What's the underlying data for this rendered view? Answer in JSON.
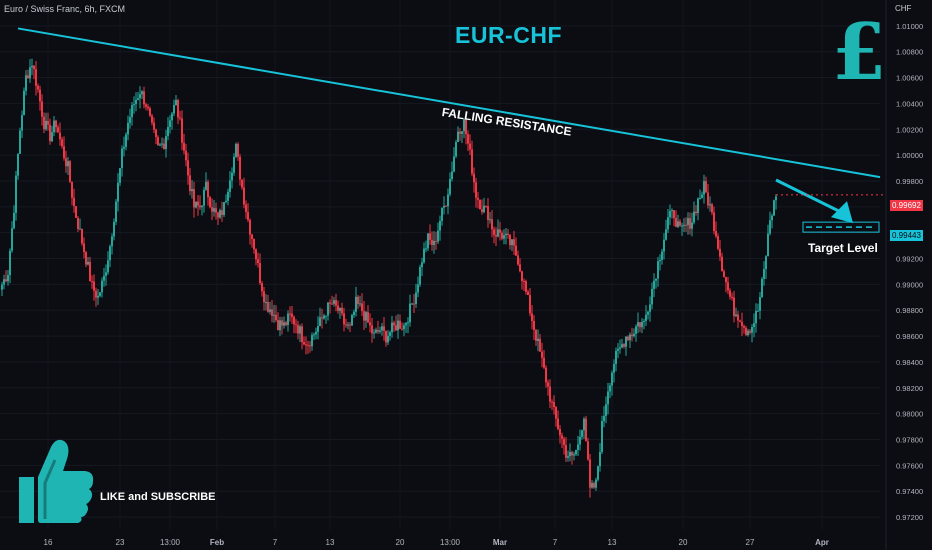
{
  "header": {
    "symbol": "Euro / Swiss Franc, 6h, FXCM"
  },
  "annotations": {
    "title": "EUR-CHF",
    "falling_resistance": "FALLING RESISTANCE",
    "target_level": "Target Level",
    "like_subscribe": "LIKE and SUBSCRIBE",
    "currency_symbol": "£"
  },
  "icons": {
    "thumbs_up": "thumbs-up-icon",
    "currency": "pound-sign-icon",
    "arrow": "arrow-icon"
  },
  "colors": {
    "up": "#26a69a",
    "down": "#f23645",
    "resistance": "#17c3d8",
    "background": "#0b0d13"
  },
  "price_axis": {
    "unit": "CHF",
    "current_price": "0.99692",
    "target_price": "0.99443"
  },
  "chart_data": {
    "type": "candlestick",
    "title": "EUR-CHF",
    "timeframe": "6h",
    "ylim": [
      0.971,
      1.012
    ],
    "yticks": [
      "1.01000",
      "1.00800",
      "1.00600",
      "1.00400",
      "1.00200",
      "1.00000",
      "0.99800",
      "0.99600",
      "0.99400",
      "0.99200",
      "0.99000",
      "0.98800",
      "0.98600",
      "0.98400",
      "0.98200",
      "0.98000",
      "0.97800",
      "0.97600",
      "0.97400",
      "0.97200"
    ],
    "xticks": [
      "16",
      "23",
      "13:00",
      "Feb",
      "7",
      "13",
      "20",
      "13:00",
      "Mar",
      "7",
      "13",
      "20",
      "27",
      "Apr"
    ],
    "resistance_line": {
      "label": "FALLING RESISTANCE",
      "from": 1.0098,
      "to": 0.9983
    },
    "target_level": 0.99443,
    "current_price": 0.99692,
    "path": [
      0.99,
      0.991,
      0.996,
      1.002,
      1.006,
      1.0072,
      1.005,
      1.0025,
      1.0015,
      1.0025,
      1.0005,
      0.999,
      0.996,
      0.994,
      0.992,
      0.9898,
      0.989,
      0.9905,
      0.993,
      0.9965,
      1.0,
      1.0025,
      1.004,
      1.005,
      1.004,
      1.002,
      1.0005,
      1.001,
      1.003,
      1.004,
      1.0015,
      0.9985,
      0.996,
      0.996,
      0.9975,
      0.996,
      0.995,
      0.996,
      0.9985,
      1.0005,
      0.9975,
      0.995,
      0.993,
      0.9905,
      0.9885,
      0.988,
      0.987,
      0.9868,
      0.9875,
      0.987,
      0.986,
      0.9855,
      0.9862,
      0.987,
      0.988,
      0.9885,
      0.988,
      0.987,
      0.9865,
      0.9885,
      0.988,
      0.987,
      0.986,
      0.9865,
      0.986,
      0.9865,
      0.987,
      0.9868,
      0.988,
      0.9895,
      0.992,
      0.9935,
      0.993,
      0.995,
      0.9965,
      0.999,
      1.002,
      1.0025,
      1.0,
      0.997,
      0.996,
      0.9955,
      0.994,
      0.994,
      0.9935,
      0.993,
      0.992,
      0.99,
      0.988,
      0.986,
      0.984,
      0.982,
      0.98,
      0.9785,
      0.977,
      0.9765,
      0.9775,
      0.98,
      0.974,
      0.9745,
      0.979,
      0.982,
      0.984,
      0.985,
      0.986,
      0.9862,
      0.987,
      0.987,
      0.989,
      0.991,
      0.993,
      0.995,
      0.9955,
      0.994,
      0.9945,
      0.995,
      0.9965,
      0.9975,
      0.996,
      0.994,
      0.9915,
      0.9895,
      0.988,
      0.9875,
      0.9865,
      0.9868,
      0.988,
      0.991,
      0.995,
      0.9968
    ]
  }
}
